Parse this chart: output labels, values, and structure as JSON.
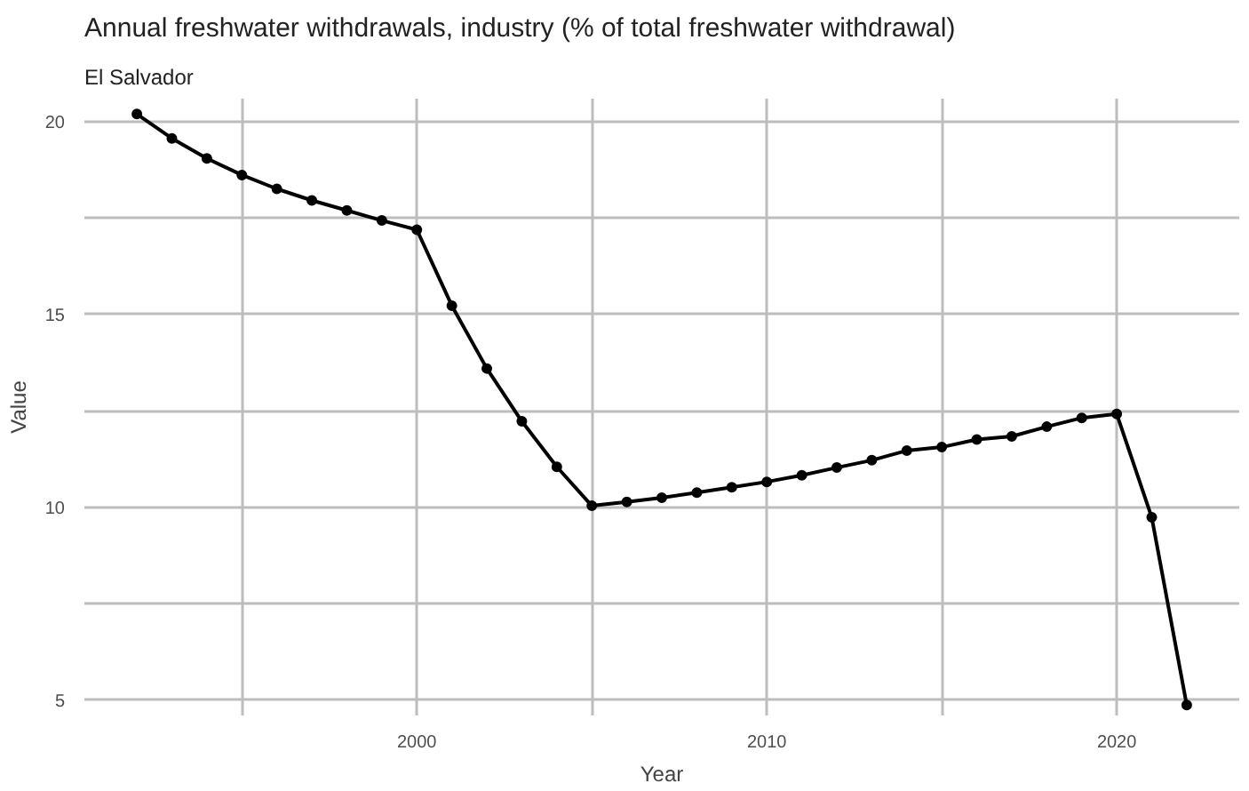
{
  "chart_data": {
    "type": "line",
    "title": "Annual freshwater withdrawals, industry (% of total freshwater withdrawal)",
    "subtitle": "El Salvador",
    "xlabel": "Year",
    "ylabel": "Value",
    "x": [
      1992,
      1993,
      1994,
      1995,
      1996,
      1997,
      1998,
      1999,
      2000,
      2001,
      2002,
      2003,
      2004,
      2005,
      2006,
      2007,
      2008,
      2009,
      2010,
      2011,
      2012,
      2013,
      2014,
      2015,
      2016,
      2017,
      2018,
      2019,
      2020,
      2021,
      2022
    ],
    "series": [
      {
        "color": "#000000",
        "values": [
          20.2,
          19.57,
          19.05,
          18.62,
          18.26,
          17.96,
          17.7,
          17.44,
          17.2,
          15.23,
          13.6,
          12.23,
          11.05,
          10.04,
          10.14,
          10.25,
          10.38,
          10.52,
          10.66,
          10.83,
          11.03,
          11.22,
          11.47,
          11.56,
          11.76,
          11.84,
          12.09,
          12.32,
          12.42,
          9.74,
          4.87
        ]
      }
    ],
    "xlim": [
      1990.5,
      2023.5
    ],
    "ylim": [
      4.6,
      20.6
    ],
    "xticks": [
      {
        "value": 1995,
        "label": null
      },
      2000,
      {
        "value": 2005,
        "label": null
      },
      2010,
      {
        "value": 2015,
        "label": null
      },
      2020
    ],
    "yticks": [
      5,
      {
        "value": 7.5,
        "label": null
      },
      10,
      {
        "value": 12.5,
        "label": null
      },
      15,
      {
        "value": 17.5,
        "label": null
      },
      20
    ],
    "grid": true,
    "marker": "circle",
    "line_style": "solid"
  }
}
